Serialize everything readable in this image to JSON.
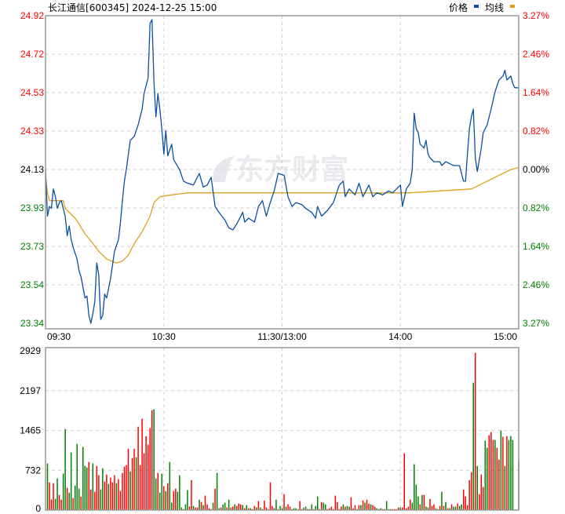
{
  "header": {
    "stock_name": "长江通信",
    "stock_code": "[600345]",
    "datetime": "2024-12-25 15:00",
    "legend_price": "价格",
    "legend_avg": "均线"
  },
  "watermark": "东方财富",
  "colors": {
    "price_line": "#0a4fa0",
    "avg_line": "#e0a020",
    "up": "#ff0000",
    "down": "#008000",
    "flat": "#000000"
  },
  "chart_data": [
    {
      "type": "line",
      "prev_close": 24.13,
      "ylim": [
        23.34,
        24.92
      ],
      "price_ticks": [
        {
          "label": "24.92",
          "dir": "up"
        },
        {
          "label": "24.72",
          "dir": "up"
        },
        {
          "label": "24.53",
          "dir": "up"
        },
        {
          "label": "24.33",
          "dir": "up"
        },
        {
          "label": "24.13",
          "dir": "flat"
        },
        {
          "label": "23.93",
          "dir": "down"
        },
        {
          "label": "23.73",
          "dir": "down"
        },
        {
          "label": "23.54",
          "dir": "down"
        },
        {
          "label": "23.34",
          "dir": "down"
        }
      ],
      "pct_ticks": [
        {
          "label": "3.27",
          "dir": "up"
        },
        {
          "label": "2.46",
          "dir": "up"
        },
        {
          "label": "1.64",
          "dir": "up"
        },
        {
          "label": "0.82",
          "dir": "up"
        },
        {
          "label": "0.00",
          "dir": "flat"
        },
        {
          "label": "0.82",
          "dir": "down"
        },
        {
          "label": "1.64",
          "dir": "down"
        },
        {
          "label": "2.46",
          "dir": "down"
        },
        {
          "label": "3.27",
          "dir": "down"
        }
      ],
      "pct_unit": "%",
      "time_ticks": [
        "09:30",
        "10:30",
        "11:30/13:00",
        "14:00",
        "15:00"
      ],
      "grid": true,
      "legend": "top-right",
      "series": [
        {
          "name": "价格",
          "points": [
            [
              "09:30",
              24.13
            ],
            [
              "09:31",
              23.89
            ],
            [
              "09:32",
              23.94
            ],
            [
              "09:33",
              23.93
            ],
            [
              "09:34",
              24.03
            ],
            [
              "09:35",
              23.99
            ],
            [
              "09:36",
              23.93
            ],
            [
              "09:37",
              23.96
            ],
            [
              "09:38",
              23.97
            ],
            [
              "09:40",
              23.89
            ],
            [
              "09:41",
              23.79
            ],
            [
              "09:42",
              23.84
            ],
            [
              "09:43",
              23.77
            ],
            [
              "09:44",
              23.73
            ],
            [
              "09:46",
              23.67
            ],
            [
              "09:47",
              23.61
            ],
            [
              "09:48",
              23.58
            ],
            [
              "09:50",
              23.47
            ],
            [
              "09:51",
              23.48
            ],
            [
              "09:52",
              23.38
            ],
            [
              "09:53",
              23.34
            ],
            [
              "09:54",
              23.39
            ],
            [
              "09:55",
              23.45
            ],
            [
              "09:56",
              23.65
            ],
            [
              "09:57",
              23.59
            ],
            [
              "09:58",
              23.36
            ],
            [
              "09:59",
              23.38
            ],
            [
              "10:00",
              23.49
            ],
            [
              "10:01",
              23.47
            ],
            [
              "10:03",
              23.57
            ],
            [
              "10:05",
              23.71
            ],
            [
              "10:07",
              23.77
            ],
            [
              "10:08",
              23.86
            ],
            [
              "10:09",
              23.97
            ],
            [
              "10:10",
              24.07
            ],
            [
              "10:11",
              24.13
            ],
            [
              "10:13",
              24.28
            ],
            [
              "10:15",
              24.3
            ],
            [
              "10:17",
              24.36
            ],
            [
              "10:19",
              24.44
            ],
            [
              "10:20",
              24.52
            ],
            [
              "10:22",
              24.6
            ],
            [
              "10:23",
              24.88
            ],
            [
              "10:24",
              24.9
            ],
            [
              "10:25",
              24.58
            ],
            [
              "10:26",
              24.4
            ],
            [
              "10:27",
              24.52
            ],
            [
              "10:28",
              24.44
            ],
            [
              "10:29",
              24.34
            ],
            [
              "10:30",
              24.21
            ],
            [
              "10:31",
              24.33
            ],
            [
              "10:32",
              24.2
            ],
            [
              "10:34",
              24.26
            ],
            [
              "10:35",
              24.18
            ],
            [
              "10:38",
              24.13
            ],
            [
              "10:40",
              24.07
            ],
            [
              "10:42",
              24.06
            ],
            [
              "10:45",
              24.05
            ],
            [
              "10:48",
              24.11
            ],
            [
              "10:50",
              24.04
            ],
            [
              "10:52",
              24.05
            ],
            [
              "10:54",
              24.09
            ],
            [
              "10:56",
              23.94
            ],
            [
              "10:58",
              23.91
            ],
            [
              "11:01",
              23.87
            ],
            [
              "11:03",
              23.83
            ],
            [
              "11:05",
              23.82
            ],
            [
              "11:07",
              23.85
            ],
            [
              "11:10",
              23.91
            ],
            [
              "11:11",
              23.86
            ],
            [
              "11:13",
              23.88
            ],
            [
              "11:16",
              23.86
            ],
            [
              "11:18",
              23.94
            ],
            [
              "11:20",
              23.97
            ],
            [
              "11:22",
              23.89
            ],
            [
              "11:24",
              23.96
            ],
            [
              "11:26",
              24.02
            ],
            [
              "11:28",
              24.11
            ],
            [
              "13:01",
              24.1
            ],
            [
              "13:03",
              23.99
            ],
            [
              "13:05",
              23.94
            ],
            [
              "13:07",
              23.96
            ],
            [
              "13:10",
              23.95
            ],
            [
              "13:12",
              23.93
            ],
            [
              "13:15",
              23.91
            ],
            [
              "13:17",
              23.88
            ],
            [
              "13:18",
              23.94
            ],
            [
              "13:20",
              23.89
            ],
            [
              "13:23",
              23.92
            ],
            [
              "13:26",
              23.96
            ],
            [
              "13:29",
              24.05
            ],
            [
              "13:31",
              24.07
            ],
            [
              "13:32",
              23.99
            ],
            [
              "13:34",
              24.03
            ],
            [
              "13:37",
              24.0
            ],
            [
              "13:39",
              24.06
            ],
            [
              "13:41",
              23.99
            ],
            [
              "13:44",
              24.05
            ],
            [
              "13:46",
              23.99
            ],
            [
              "13:48",
              24.01
            ],
            [
              "13:51",
              24.0
            ],
            [
              "13:54",
              24.02
            ],
            [
              "13:56",
              24.01
            ],
            [
              "13:58",
              24.03
            ],
            [
              "14:00",
              24.05
            ],
            [
              "14:01",
              23.94
            ],
            [
              "14:03",
              24.03
            ],
            [
              "14:05",
              24.06
            ],
            [
              "14:06",
              24.13
            ],
            [
              "14:07",
              24.42
            ],
            [
              "14:08",
              24.34
            ],
            [
              "14:09",
              24.32
            ],
            [
              "14:10",
              24.26
            ],
            [
              "14:12",
              24.24
            ],
            [
              "14:13",
              24.28
            ],
            [
              "14:14",
              24.21
            ],
            [
              "14:15",
              24.19
            ],
            [
              "14:17",
              24.17
            ],
            [
              "14:20",
              24.17
            ],
            [
              "14:21",
              24.15
            ],
            [
              "14:23",
              24.17
            ],
            [
              "14:25",
              24.16
            ],
            [
              "14:27",
              24.15
            ],
            [
              "14:29",
              24.15
            ],
            [
              "14:30",
              24.15
            ],
            [
              "14:32",
              24.07
            ],
            [
              "14:33",
              24.07
            ],
            [
              "14:34",
              24.21
            ],
            [
              "14:35",
              24.34
            ],
            [
              "14:36",
              24.4
            ],
            [
              "14:37",
              24.44
            ],
            [
              "14:38",
              24.19
            ],
            [
              "14:39",
              24.12
            ],
            [
              "14:40",
              24.18
            ],
            [
              "14:41",
              24.24
            ],
            [
              "14:42",
              24.32
            ],
            [
              "14:44",
              24.36
            ],
            [
              "14:45",
              24.4
            ],
            [
              "14:46",
              24.44
            ],
            [
              "14:48",
              24.53
            ],
            [
              "14:49",
              24.56
            ],
            [
              "14:50",
              24.59
            ],
            [
              "14:52",
              24.61
            ],
            [
              "14:53",
              24.64
            ],
            [
              "14:54",
              24.59
            ],
            [
              "14:56",
              24.61
            ],
            [
              "14:57",
              24.57
            ],
            [
              "14:58",
              24.55
            ],
            [
              "15:00",
              24.55
            ]
          ]
        },
        {
          "name": "均线",
          "points": [
            [
              "09:30",
              24.09
            ],
            [
              "09:31",
              24.01
            ],
            [
              "09:32",
              23.97
            ],
            [
              "09:39",
              23.97
            ],
            [
              "09:40",
              23.93
            ],
            [
              "09:45",
              23.88
            ],
            [
              "09:47",
              23.85
            ],
            [
              "09:50",
              23.8
            ],
            [
              "09:54",
              23.75
            ],
            [
              "09:57",
              23.71
            ],
            [
              "10:01",
              23.67
            ],
            [
              "10:06",
              23.65
            ],
            [
              "10:09",
              23.66
            ],
            [
              "10:12",
              23.69
            ],
            [
              "10:15",
              23.75
            ],
            [
              "10:19",
              23.81
            ],
            [
              "10:23",
              23.89
            ],
            [
              "10:25",
              23.96
            ],
            [
              "10:28",
              23.99
            ],
            [
              "10:34",
              24.0
            ],
            [
              "10:42",
              24.01
            ],
            [
              "11:30",
              24.01
            ],
            [
              "13:40",
              24.01
            ],
            [
              "14:04",
              24.01
            ],
            [
              "14:20",
              24.02
            ],
            [
              "14:36",
              24.03
            ],
            [
              "14:40",
              24.05
            ],
            [
              "14:48",
              24.09
            ],
            [
              "14:56",
              24.13
            ],
            [
              "15:00",
              24.14
            ]
          ]
        }
      ]
    },
    {
      "type": "bar",
      "ylim": [
        0,
        2929
      ],
      "ticks": [
        "2929",
        "2197",
        "1465",
        "732",
        "0"
      ],
      "start_time": "09:31",
      "values": [
        856,
        510,
        192,
        495,
        207,
        582,
        279,
        192,
        669,
        1491,
        409,
        322,
        1058,
        221,
        452,
        1217,
        394,
        250,
        1159,
        813,
        784,
        885,
        380,
        856,
        337,
        813,
        640,
        380,
        770,
        524,
        654,
        481,
        596,
        510,
        640,
        495,
        568,
        351,
        683,
        798,
        827,
        1130,
        712,
        957,
        1130,
        972,
        1534,
        827,
        1679,
        1044,
        1361,
        1203,
        1506,
        1837,
        1852,
        582,
        683,
        322,
        669,
        438,
        351,
        495,
        885,
        135,
        351,
        394,
        337,
        640,
        48,
        19,
        106,
        366,
        63,
        553,
        77,
        48,
        48,
        192,
        149,
        91,
        265,
        106,
        34,
        19,
        135,
        394,
        683,
        34,
        48,
        106,
        135,
        48,
        192,
        48,
        63,
        106,
        77,
        120,
        106,
        91,
        34,
        91,
        34,
        34,
        19,
        77,
        48,
        164,
        48,
        19,
        178,
        48,
        19,
        510,
        77,
        34,
        192,
        19,
        77,
        34,
        293,
        63,
        106,
        63,
        19,
        34,
        34,
        19,
        164,
        19,
        48,
        63,
        19,
        19,
        106,
        19,
        77,
        250,
        19,
        149,
        135,
        106,
        19,
        34,
        63,
        19,
        265,
        149,
        19,
        63,
        106,
        63,
        77,
        63,
        236,
        34,
        91,
        19,
        91,
        91,
        178,
        135,
        192,
        120,
        106,
        91,
        63,
        34,
        19,
        34,
        19,
        19,
        164,
        19,
        19,
        19,
        19,
        19,
        48,
        48,
        48,
        1044,
        34,
        63,
        192,
        135,
        842,
        467,
        250,
        106,
        279,
        279,
        63,
        48,
        207,
        77,
        106,
        34,
        19,
        77,
        337,
        77,
        149,
        34,
        34,
        106,
        63,
        63,
        120,
        77,
        106,
        380,
        250,
        91,
        553,
        697,
        2342,
        2891,
        813,
        293,
        654,
        423,
        1275,
        1145,
        1376,
        1433,
        1289,
        1289,
        1145,
        928,
        1462,
        1347,
        813,
        1361,
        1289,
        1361,
        1289,
        0,
        0,
        914
      ],
      "colors": "grrrggrrggrggrgggrgggrrgrrrggrrgrrrgrrrrrrgrrgrrrrrrrrggrggrgrggrrggggggrrgrrgrgrrrggrggrggrgrrgrrrgrgrgrrgrgrrrrrrggrggrgrrgggrrrgggrgrggrrggrrrrrrrrgrggrrrgrgrgrrgrrgggrgggrrrrrgrrrrrggggrgrggrrrggrgrgrgrggrggrrrrrgrgrrrggrrrgrrgrgrgggr"
    }
  ]
}
